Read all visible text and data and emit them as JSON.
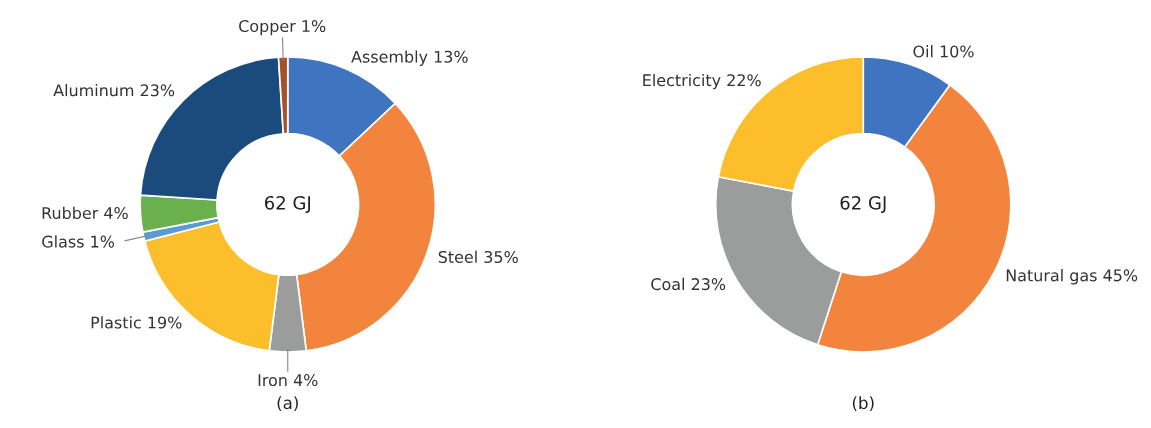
{
  "chart_data": [
    {
      "type": "donut",
      "title": "(a)",
      "annotations": [
        "62 GJ"
      ],
      "categories": [
        "Assembly",
        "Steel",
        "Iron",
        "Plastic",
        "Glass",
        "Rubber",
        "Aluminum",
        "Copper"
      ],
      "values": [
        13,
        35,
        4,
        19,
        1,
        4,
        23,
        1
      ],
      "value_labels": [
        "13%",
        "35%",
        "4%",
        "19%",
        "1%",
        "4%",
        "23%",
        "1%"
      ],
      "colors": [
        "#3f74c0",
        "#f2843d",
        "#9b9d9d",
        "#fdbe2b",
        "#5b9bd5",
        "#6ab04c",
        "#1b4a7c",
        "#a5522a"
      ]
    },
    {
      "type": "donut",
      "title": "(b)",
      "annotations": [
        "62 GJ"
      ],
      "categories": [
        "Oil",
        "Natural gas",
        "Coal",
        "Electricity"
      ],
      "values": [
        10,
        45,
        23,
        22
      ],
      "value_labels": [
        "10%",
        "45%",
        "23%",
        "22%"
      ],
      "colors": [
        "#3f74c0",
        "#f2843d",
        "#9b9d9d",
        "#fdbe2b"
      ]
    }
  ]
}
